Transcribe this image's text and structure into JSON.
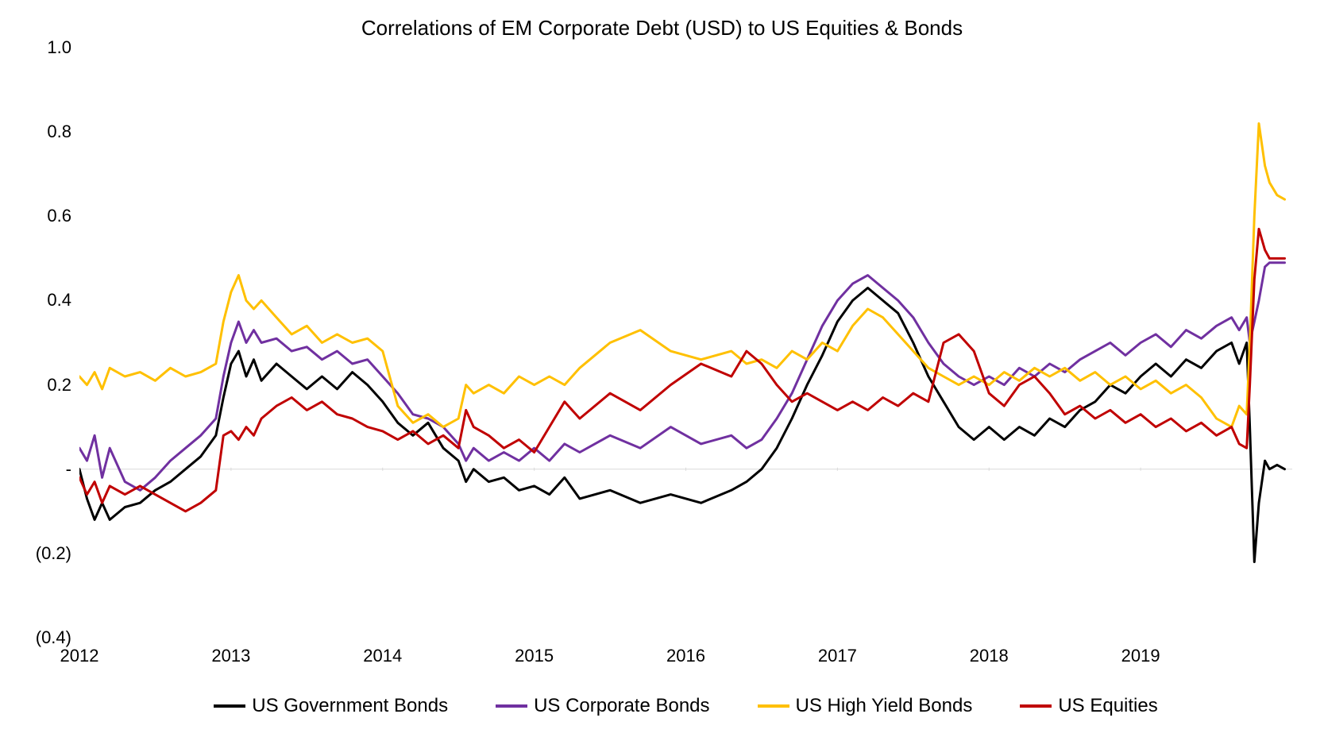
{
  "chart": {
    "type": "line",
    "title": "Correlations of EM Corporate Debt (USD) to US Equities & Bonds",
    "title_fontsize": 26,
    "background_color": "#ffffff",
    "grid_color": "#d9d9d9",
    "axis_color": "#000000",
    "label_fontsize": 22,
    "legend_fontsize": 24,
    "line_width": 3,
    "ylim": [
      -0.4,
      1.0
    ],
    "ytick_step": 0.2,
    "ytick_labels": [
      "(0.4)",
      "(0.2)",
      "-",
      "0.2",
      "0.4",
      "0.6",
      "0.8",
      "1.0"
    ],
    "ytick_values": [
      -0.4,
      -0.2,
      0.0,
      0.2,
      0.4,
      0.6,
      0.8,
      1.0
    ],
    "xlim": [
      2012,
      2020
    ],
    "xtick_values": [
      2012,
      2013,
      2014,
      2015,
      2016,
      2017,
      2018,
      2019
    ],
    "xtick_labels": [
      "2012",
      "2013",
      "2014",
      "2015",
      "2016",
      "2017",
      "2018",
      "2019"
    ],
    "series": [
      {
        "name": "US Government Bonds",
        "color": "#000000",
        "x": [
          2012.0,
          2012.05,
          2012.1,
          2012.15,
          2012.2,
          2012.3,
          2012.4,
          2012.5,
          2012.6,
          2012.7,
          2012.8,
          2012.9,
          2012.95,
          2013.0,
          2013.05,
          2013.1,
          2013.15,
          2013.2,
          2013.3,
          2013.4,
          2013.5,
          2013.6,
          2013.7,
          2013.8,
          2013.9,
          2014.0,
          2014.1,
          2014.2,
          2014.3,
          2014.4,
          2014.5,
          2014.55,
          2014.6,
          2014.7,
          2014.8,
          2014.9,
          2015.0,
          2015.1,
          2015.2,
          2015.3,
          2015.5,
          2015.7,
          2015.9,
          2016.1,
          2016.3,
          2016.4,
          2016.5,
          2016.6,
          2016.7,
          2016.8,
          2016.9,
          2017.0,
          2017.1,
          2017.2,
          2017.3,
          2017.4,
          2017.5,
          2017.6,
          2017.7,
          2017.8,
          2017.9,
          2018.0,
          2018.1,
          2018.2,
          2018.3,
          2018.4,
          2018.5,
          2018.6,
          2018.7,
          2018.8,
          2018.9,
          2019.0,
          2019.1,
          2019.2,
          2019.3,
          2019.4,
          2019.5,
          2019.6,
          2019.65,
          2019.7,
          2019.72,
          2019.75,
          2019.78,
          2019.82,
          2019.85,
          2019.9,
          2019.95
        ],
        "y": [
          0.0,
          -0.07,
          -0.12,
          -0.08,
          -0.12,
          -0.09,
          -0.08,
          -0.05,
          -0.03,
          0.0,
          0.03,
          0.08,
          0.17,
          0.25,
          0.28,
          0.22,
          0.26,
          0.21,
          0.25,
          0.22,
          0.19,
          0.22,
          0.19,
          0.23,
          0.2,
          0.16,
          0.11,
          0.08,
          0.11,
          0.05,
          0.02,
          -0.03,
          0.0,
          -0.03,
          -0.02,
          -0.05,
          -0.04,
          -0.06,
          -0.02,
          -0.07,
          -0.05,
          -0.08,
          -0.06,
          -0.08,
          -0.05,
          -0.03,
          0.0,
          0.05,
          0.12,
          0.2,
          0.27,
          0.35,
          0.4,
          0.43,
          0.4,
          0.37,
          0.3,
          0.22,
          0.16,
          0.1,
          0.07,
          0.1,
          0.07,
          0.1,
          0.08,
          0.12,
          0.1,
          0.14,
          0.16,
          0.2,
          0.18,
          0.22,
          0.25,
          0.22,
          0.26,
          0.24,
          0.28,
          0.3,
          0.25,
          0.3,
          0.1,
          -0.22,
          -0.08,
          0.02,
          0.0,
          0.01,
          0.0
        ]
      },
      {
        "name": "US Corporate Bonds",
        "color": "#7030a0",
        "x": [
          2012.0,
          2012.05,
          2012.1,
          2012.15,
          2012.2,
          2012.3,
          2012.4,
          2012.5,
          2012.6,
          2012.7,
          2012.8,
          2012.9,
          2012.95,
          2013.0,
          2013.05,
          2013.1,
          2013.15,
          2013.2,
          2013.3,
          2013.4,
          2013.5,
          2013.6,
          2013.7,
          2013.8,
          2013.9,
          2014.0,
          2014.1,
          2014.2,
          2014.3,
          2014.4,
          2014.5,
          2014.55,
          2014.6,
          2014.7,
          2014.8,
          2014.9,
          2015.0,
          2015.1,
          2015.2,
          2015.3,
          2015.5,
          2015.7,
          2015.9,
          2016.1,
          2016.3,
          2016.4,
          2016.5,
          2016.6,
          2016.7,
          2016.8,
          2016.9,
          2017.0,
          2017.1,
          2017.2,
          2017.3,
          2017.4,
          2017.5,
          2017.6,
          2017.7,
          2017.8,
          2017.9,
          2018.0,
          2018.1,
          2018.2,
          2018.3,
          2018.4,
          2018.5,
          2018.6,
          2018.7,
          2018.8,
          2018.9,
          2019.0,
          2019.1,
          2019.2,
          2019.3,
          2019.4,
          2019.5,
          2019.6,
          2019.65,
          2019.7,
          2019.72,
          2019.75,
          2019.78,
          2019.82,
          2019.85,
          2019.9,
          2019.95
        ],
        "y": [
          0.05,
          0.02,
          0.08,
          -0.02,
          0.05,
          -0.03,
          -0.05,
          -0.02,
          0.02,
          0.05,
          0.08,
          0.12,
          0.22,
          0.3,
          0.35,
          0.3,
          0.33,
          0.3,
          0.31,
          0.28,
          0.29,
          0.26,
          0.28,
          0.25,
          0.26,
          0.22,
          0.18,
          0.13,
          0.12,
          0.1,
          0.06,
          0.02,
          0.05,
          0.02,
          0.04,
          0.02,
          0.05,
          0.02,
          0.06,
          0.04,
          0.08,
          0.05,
          0.1,
          0.06,
          0.08,
          0.05,
          0.07,
          0.12,
          0.18,
          0.26,
          0.34,
          0.4,
          0.44,
          0.46,
          0.43,
          0.4,
          0.36,
          0.3,
          0.25,
          0.22,
          0.2,
          0.22,
          0.2,
          0.24,
          0.22,
          0.25,
          0.23,
          0.26,
          0.28,
          0.3,
          0.27,
          0.3,
          0.32,
          0.29,
          0.33,
          0.31,
          0.34,
          0.36,
          0.33,
          0.36,
          0.3,
          0.35,
          0.4,
          0.48,
          0.49,
          0.49,
          0.49
        ]
      },
      {
        "name": "US High Yield Bonds",
        "color": "#ffc000",
        "x": [
          2012.0,
          2012.05,
          2012.1,
          2012.15,
          2012.2,
          2012.3,
          2012.4,
          2012.5,
          2012.6,
          2012.7,
          2012.8,
          2012.9,
          2012.95,
          2013.0,
          2013.05,
          2013.1,
          2013.15,
          2013.2,
          2013.3,
          2013.4,
          2013.5,
          2013.6,
          2013.7,
          2013.8,
          2013.9,
          2014.0,
          2014.1,
          2014.2,
          2014.3,
          2014.4,
          2014.5,
          2014.55,
          2014.6,
          2014.7,
          2014.8,
          2014.9,
          2015.0,
          2015.1,
          2015.2,
          2015.3,
          2015.5,
          2015.7,
          2015.9,
          2016.1,
          2016.3,
          2016.4,
          2016.5,
          2016.6,
          2016.7,
          2016.8,
          2016.9,
          2017.0,
          2017.1,
          2017.2,
          2017.3,
          2017.4,
          2017.5,
          2017.6,
          2017.7,
          2017.8,
          2017.9,
          2018.0,
          2018.1,
          2018.2,
          2018.3,
          2018.4,
          2018.5,
          2018.6,
          2018.7,
          2018.8,
          2018.9,
          2019.0,
          2019.1,
          2019.2,
          2019.3,
          2019.4,
          2019.5,
          2019.6,
          2019.65,
          2019.7,
          2019.72,
          2019.75,
          2019.78,
          2019.82,
          2019.85,
          2019.9,
          2019.95
        ],
        "y": [
          0.22,
          0.2,
          0.23,
          0.19,
          0.24,
          0.22,
          0.23,
          0.21,
          0.24,
          0.22,
          0.23,
          0.25,
          0.35,
          0.42,
          0.46,
          0.4,
          0.38,
          0.4,
          0.36,
          0.32,
          0.34,
          0.3,
          0.32,
          0.3,
          0.31,
          0.28,
          0.15,
          0.11,
          0.13,
          0.1,
          0.12,
          0.2,
          0.18,
          0.2,
          0.18,
          0.22,
          0.2,
          0.22,
          0.2,
          0.24,
          0.3,
          0.33,
          0.28,
          0.26,
          0.28,
          0.25,
          0.26,
          0.24,
          0.28,
          0.26,
          0.3,
          0.28,
          0.34,
          0.38,
          0.36,
          0.32,
          0.28,
          0.24,
          0.22,
          0.2,
          0.22,
          0.2,
          0.23,
          0.21,
          0.24,
          0.22,
          0.24,
          0.21,
          0.23,
          0.2,
          0.22,
          0.19,
          0.21,
          0.18,
          0.2,
          0.17,
          0.12,
          0.1,
          0.15,
          0.13,
          0.3,
          0.6,
          0.82,
          0.72,
          0.68,
          0.65,
          0.64
        ]
      },
      {
        "name": "US Equities",
        "color": "#c00000",
        "x": [
          2012.0,
          2012.05,
          2012.1,
          2012.15,
          2012.2,
          2012.3,
          2012.4,
          2012.5,
          2012.6,
          2012.7,
          2012.8,
          2012.9,
          2012.95,
          2013.0,
          2013.05,
          2013.1,
          2013.15,
          2013.2,
          2013.3,
          2013.4,
          2013.5,
          2013.6,
          2013.7,
          2013.8,
          2013.9,
          2014.0,
          2014.1,
          2014.2,
          2014.3,
          2014.4,
          2014.5,
          2014.55,
          2014.6,
          2014.7,
          2014.8,
          2014.9,
          2015.0,
          2015.1,
          2015.2,
          2015.3,
          2015.5,
          2015.7,
          2015.9,
          2016.1,
          2016.3,
          2016.4,
          2016.5,
          2016.6,
          2016.7,
          2016.8,
          2016.9,
          2017.0,
          2017.1,
          2017.2,
          2017.3,
          2017.4,
          2017.5,
          2017.6,
          2017.7,
          2017.8,
          2017.9,
          2018.0,
          2018.1,
          2018.2,
          2018.3,
          2018.4,
          2018.5,
          2018.6,
          2018.7,
          2018.8,
          2018.9,
          2019.0,
          2019.1,
          2019.2,
          2019.3,
          2019.4,
          2019.5,
          2019.6,
          2019.65,
          2019.7,
          2019.72,
          2019.75,
          2019.78,
          2019.82,
          2019.85,
          2019.9,
          2019.95
        ],
        "y": [
          -0.02,
          -0.06,
          -0.03,
          -0.08,
          -0.04,
          -0.06,
          -0.04,
          -0.06,
          -0.08,
          -0.1,
          -0.08,
          -0.05,
          0.08,
          0.09,
          0.07,
          0.1,
          0.08,
          0.12,
          0.15,
          0.17,
          0.14,
          0.16,
          0.13,
          0.12,
          0.1,
          0.09,
          0.07,
          0.09,
          0.06,
          0.08,
          0.05,
          0.14,
          0.1,
          0.08,
          0.05,
          0.07,
          0.04,
          0.1,
          0.16,
          0.12,
          0.18,
          0.14,
          0.2,
          0.25,
          0.22,
          0.28,
          0.25,
          0.2,
          0.16,
          0.18,
          0.16,
          0.14,
          0.16,
          0.14,
          0.17,
          0.15,
          0.18,
          0.16,
          0.3,
          0.32,
          0.28,
          0.18,
          0.15,
          0.2,
          0.22,
          0.18,
          0.13,
          0.15,
          0.12,
          0.14,
          0.11,
          0.13,
          0.1,
          0.12,
          0.09,
          0.11,
          0.08,
          0.1,
          0.06,
          0.05,
          0.2,
          0.45,
          0.57,
          0.52,
          0.5,
          0.5,
          0.5
        ]
      }
    ],
    "legend": {
      "position": "bottom",
      "items": [
        "US Government Bonds",
        "US Corporate Bonds",
        "US High Yield Bonds",
        "US Equities"
      ]
    }
  }
}
